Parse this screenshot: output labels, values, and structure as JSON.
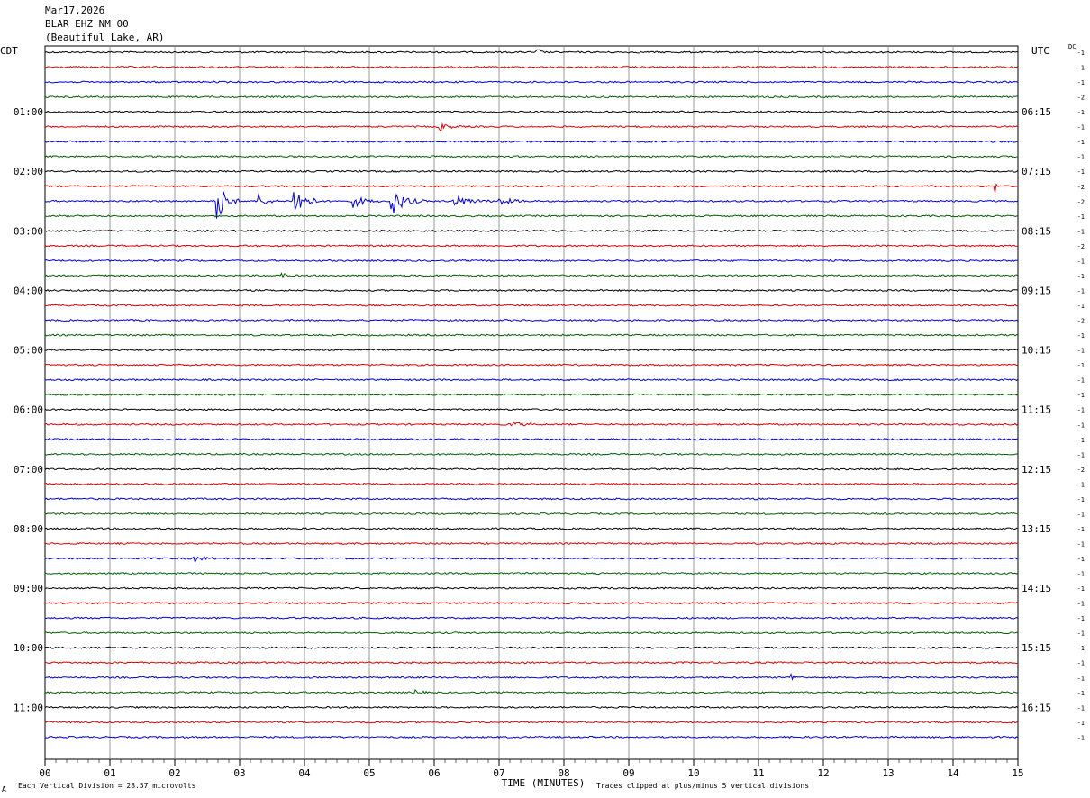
{
  "header": {
    "date": "Mar17,2026",
    "station": "BLAR EHZ NM 00",
    "location": "(Beautiful Lake, AR)"
  },
  "left_tz": "CDT",
  "right_tz": "UTC",
  "dc_label": "DC",
  "footer": {
    "scale_note": "Each Vertical Division =   28.57 microvolts",
    "clip_note": "Traces clipped at plus/minus 5 vertical divisions",
    "corner_mark": "A"
  },
  "colors": {
    "trace_cycle": [
      "#000000",
      "#e00000",
      "#0000e0",
      "#006000"
    ],
    "grid": "#808080"
  },
  "chart_data": {
    "type": "line",
    "title": "BLAR EHZ NM 00 (Beautiful Lake, AR) Mar17,2026",
    "xlabel": "TIME (MINUTES)",
    "xlim": [
      0,
      15
    ],
    "x_ticks": [
      "00",
      "01",
      "02",
      "03",
      "04",
      "05",
      "06",
      "07",
      "08",
      "09",
      "10",
      "11",
      "12",
      "13",
      "14",
      "15"
    ],
    "rows_per_hour": 4,
    "row_minutes": 15,
    "left_hour_labels": [
      "01:00",
      "02:00",
      "03:00",
      "04:00",
      "05:00",
      "06:00",
      "07:00",
      "08:00",
      "09:00",
      "10:00",
      "11:00"
    ],
    "right_hour_labels": [
      "06:15",
      "07:15",
      "08:15",
      "09:15",
      "10:15",
      "11:15",
      "12:15",
      "13:15",
      "14:15",
      "15:15",
      "16:15"
    ],
    "dc_offsets": [
      -1,
      -1,
      -1,
      -2,
      -1,
      -1,
      -1,
      -1,
      -1,
      -2,
      -2,
      -1,
      -1,
      -2,
      -1,
      -1,
      -1,
      -1,
      -2,
      -1,
      -1,
      -1,
      -1,
      -1,
      -1,
      -1,
      -1,
      -1,
      -2,
      -1,
      -1,
      -1,
      -1,
      -1,
      -1,
      -1,
      -1,
      -1,
      -1,
      -1,
      -1,
      -1,
      -1,
      -1,
      -1,
      -1,
      -1
    ],
    "events": [
      {
        "row": 10,
        "minute": 2.65,
        "amplitude": 4.5,
        "duration": 0.35
      },
      {
        "row": 10,
        "minute": 3.3,
        "amplitude": 1.4,
        "duration": 0.3
      },
      {
        "row": 10,
        "minute": 3.85,
        "amplitude": 3.5,
        "duration": 0.4
      },
      {
        "row": 10,
        "minute": 4.75,
        "amplitude": 1.3,
        "duration": 0.4
      },
      {
        "row": 10,
        "minute": 5.35,
        "amplitude": 2.5,
        "duration": 0.5
      },
      {
        "row": 10,
        "minute": 6.3,
        "amplitude": 1.2,
        "duration": 0.6
      },
      {
        "row": 10,
        "minute": 7.0,
        "amplitude": 0.8,
        "duration": 0.5
      },
      {
        "row": 9,
        "minute": 14.65,
        "amplitude": 1.3,
        "duration": 0.05
      },
      {
        "row": 15,
        "minute": 3.65,
        "amplitude": 1.3,
        "duration": 0.1
      },
      {
        "row": 0,
        "minute": 7.6,
        "amplitude": 0.9,
        "duration": 0.1
      },
      {
        "row": 5,
        "minute": 6.1,
        "amplitude": 0.8,
        "duration": 0.3
      },
      {
        "row": 25,
        "minute": 7.2,
        "amplitude": 0.8,
        "duration": 0.3
      },
      {
        "row": 34,
        "minute": 2.3,
        "amplitude": 0.6,
        "duration": 0.4
      },
      {
        "row": 42,
        "minute": 11.5,
        "amplitude": 0.8,
        "duration": 0.2
      },
      {
        "row": 43,
        "minute": 5.7,
        "amplitude": 0.6,
        "duration": 0.2
      }
    ]
  }
}
